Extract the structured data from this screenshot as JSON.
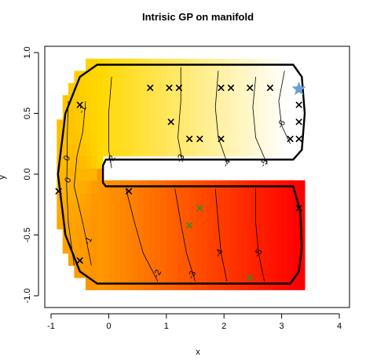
{
  "chart_data": {
    "type": "heatmap",
    "title": "Intrisic GP on manifold",
    "xlabel": "x",
    "ylabel": "y",
    "xlim": [
      -1,
      4
    ],
    "ylim": [
      -1,
      1
    ],
    "x_ticks": [
      {
        "value": -1,
        "label": "-1"
      },
      {
        "value": 0,
        "label": "0"
      },
      {
        "value": 1,
        "label": "1"
      },
      {
        "value": 2,
        "label": "2"
      },
      {
        "value": 3,
        "label": "3"
      },
      {
        "value": 4,
        "label": "4"
      }
    ],
    "y_ticks": [
      {
        "value": -1.0,
        "label": "-1.0"
      },
      {
        "value": -0.5,
        "label": "-0.5"
      },
      {
        "value": 0.0,
        "label": "0.0"
      },
      {
        "value": 0.5,
        "label": "0.5"
      },
      {
        "value": 1.0,
        "label": "1.0"
      }
    ],
    "grid": false,
    "color_scale": {
      "low": "#ff0000",
      "mid": "#ffd800",
      "high": "#ffffff"
    },
    "contour_labels": [
      {
        "label": "0",
        "x": -0.72,
        "y": 0.13
      },
      {
        "label": "0",
        "x": -0.7,
        "y": -0.05
      },
      {
        "label": "-1",
        "x": -0.45,
        "y": 0.53
      },
      {
        "label": "-1",
        "x": -0.35,
        "y": -0.55
      },
      {
        "label": "-2",
        "x": 0.05,
        "y": 0.12
      },
      {
        "label": "-2",
        "x": 0.85,
        "y": -0.82
      },
      {
        "label": "-3",
        "x": 1.25,
        "y": 0.13
      },
      {
        "label": "-3",
        "x": 1.45,
        "y": -0.83
      },
      {
        "label": "-4",
        "x": 2.05,
        "y": 0.09
      },
      {
        "label": "-4",
        "x": 1.92,
        "y": -0.65
      },
      {
        "label": "-5",
        "x": 2.7,
        "y": 0.09
      },
      {
        "label": "-5",
        "x": 2.6,
        "y": -0.65
      },
      {
        "label": "-6",
        "x": 3.0,
        "y": 0.41
      }
    ],
    "contour_lines": [
      [
        [
          -0.7,
          0.6
        ],
        [
          -0.72,
          0.3
        ],
        [
          -0.72,
          0.1
        ],
        [
          -0.73,
          -0.1
        ],
        [
          -0.7,
          -0.4
        ],
        [
          -0.6,
          -0.75
        ]
      ],
      [
        [
          -0.4,
          0.6
        ],
        [
          -0.45,
          0.35
        ],
        [
          -0.55,
          0.15
        ],
        [
          -0.6,
          -0.1
        ],
        [
          -0.45,
          -0.4
        ],
        [
          -0.3,
          -0.75
        ]
      ],
      [
        [
          0.05,
          0.8
        ],
        [
          0.0,
          0.5
        ],
        [
          0.0,
          0.2
        ],
        [
          0.05,
          0.05
        ]
      ],
      [
        [
          0.3,
          -0.12
        ],
        [
          0.45,
          -0.4
        ],
        [
          0.6,
          -0.65
        ],
        [
          0.85,
          -0.88
        ]
      ],
      [
        [
          1.25,
          0.88
        ],
        [
          1.25,
          0.6
        ],
        [
          1.2,
          0.3
        ],
        [
          1.28,
          0.1
        ]
      ],
      [
        [
          1.15,
          -0.12
        ],
        [
          1.25,
          -0.4
        ],
        [
          1.35,
          -0.65
        ],
        [
          1.5,
          -0.88
        ]
      ],
      [
        [
          1.9,
          0.85
        ],
        [
          1.85,
          0.55
        ],
        [
          1.9,
          0.3
        ],
        [
          2.05,
          0.1
        ]
      ],
      [
        [
          1.85,
          -0.12
        ],
        [
          1.9,
          -0.4
        ],
        [
          1.95,
          -0.65
        ],
        [
          2.05,
          -0.88
        ]
      ],
      [
        [
          2.55,
          0.8
        ],
        [
          2.5,
          0.55
        ],
        [
          2.55,
          0.3
        ],
        [
          2.75,
          0.08
        ]
      ],
      [
        [
          2.55,
          -0.12
        ],
        [
          2.55,
          -0.4
        ],
        [
          2.6,
          -0.65
        ],
        [
          2.7,
          -0.88
        ]
      ],
      [
        [
          3.05,
          0.85
        ],
        [
          2.95,
          0.6
        ],
        [
          3.0,
          0.4
        ],
        [
          3.15,
          0.25
        ]
      ]
    ],
    "manifold_boundary": [
      [
        -0.2,
        0.9
      ],
      [
        3.2,
        0.9
      ],
      [
        3.35,
        0.8
      ],
      [
        3.4,
        0.5
      ],
      [
        3.35,
        0.2
      ],
      [
        3.2,
        0.12
      ],
      [
        -0.05,
        0.12
      ],
      [
        -0.1,
        0.07
      ],
      [
        -0.1,
        -0.07
      ],
      [
        -0.05,
        -0.1
      ],
      [
        3.2,
        -0.1
      ],
      [
        3.32,
        -0.3
      ],
      [
        3.35,
        -0.6
      ],
      [
        3.3,
        -0.8
      ],
      [
        3.15,
        -0.9
      ],
      [
        -0.2,
        -0.9
      ],
      [
        -0.5,
        -0.8
      ],
      [
        -0.75,
        -0.5
      ],
      [
        -0.88,
        0.0
      ],
      [
        -0.75,
        0.5
      ],
      [
        -0.5,
        0.8
      ],
      [
        -0.2,
        0.9
      ]
    ],
    "series": [
      {
        "marker": "x",
        "color": "#000000",
        "points": [
          [
            0.72,
            0.71
          ],
          [
            1.05,
            0.71
          ],
          [
            1.22,
            0.71
          ],
          [
            1.08,
            0.43
          ],
          [
            1.4,
            0.29
          ],
          [
            1.58,
            0.29
          ],
          [
            1.95,
            0.71
          ],
          [
            2.12,
            0.71
          ],
          [
            2.45,
            0.71
          ],
          [
            2.8,
            0.71
          ],
          [
            1.95,
            0.29
          ],
          [
            3.15,
            0.29
          ],
          [
            3.3,
            0.29
          ],
          [
            3.3,
            0.43
          ],
          [
            3.3,
            0.57
          ],
          [
            -0.5,
            0.57
          ],
          [
            -0.87,
            -0.14
          ],
          [
            0.35,
            -0.14
          ],
          [
            3.3,
            -0.28
          ],
          [
            -0.5,
            -0.71
          ]
        ]
      },
      {
        "marker": "x",
        "color": "#2e8b2e",
        "points": [
          [
            1.58,
            -0.28
          ],
          [
            1.4,
            -0.42
          ],
          [
            2.45,
            -0.85
          ]
        ]
      },
      {
        "marker": "star",
        "color": "#6a9fd8",
        "points": [
          [
            3.3,
            0.7
          ]
        ]
      }
    ]
  }
}
